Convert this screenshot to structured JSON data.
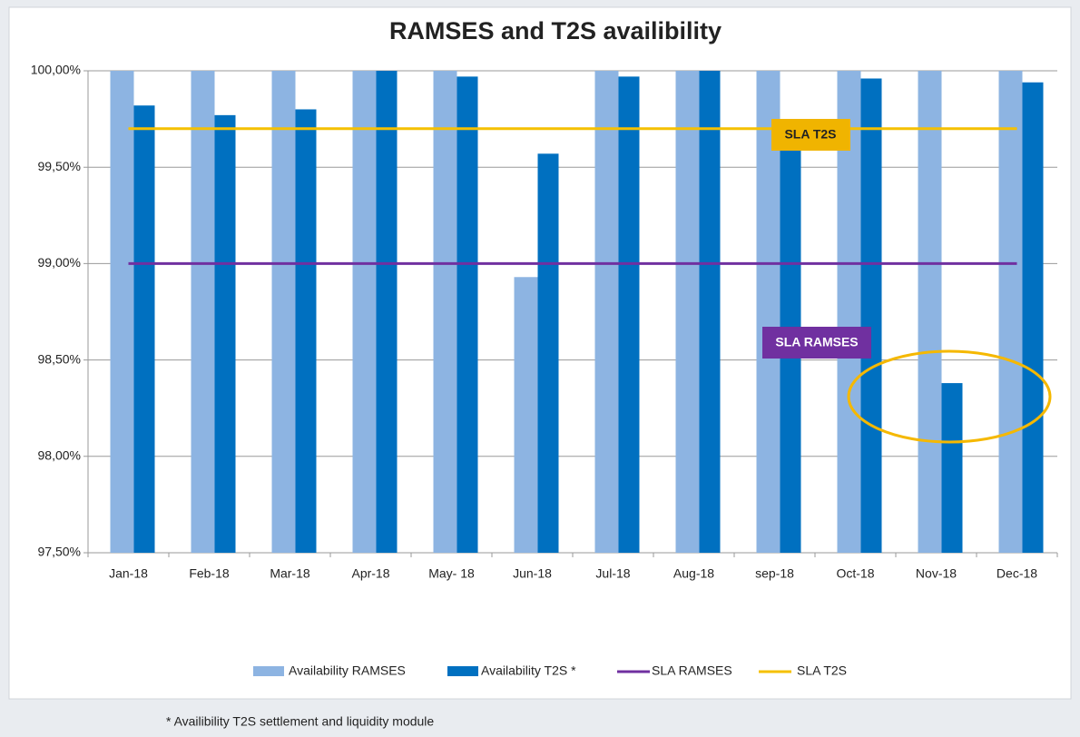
{
  "chart_data": {
    "type": "bar",
    "title": "RAMSES and T2S availibility",
    "categories": [
      "Jan-18",
      "Feb-18",
      "Mar-18",
      "Apr-18",
      "May- 18",
      "Jun-18",
      "Jul-18",
      "Aug-18",
      "sep-18",
      "Oct-18",
      "Nov-18",
      "Dec-18"
    ],
    "series": [
      {
        "name": "Availability RAMSES",
        "type": "bar",
        "color": "#8db4e2",
        "values": [
          100,
          100,
          100,
          100,
          100,
          98.93,
          100,
          100,
          100,
          100,
          100,
          100
        ]
      },
      {
        "name": "Availability T2S *",
        "type": "bar",
        "color": "#0070c0",
        "values": [
          99.82,
          99.77,
          99.8,
          100,
          99.97,
          99.57,
          99.97,
          100,
          99.6,
          99.96,
          98.38,
          99.94
        ]
      },
      {
        "name": "SLA RAMSES",
        "type": "line",
        "color": "#7030a0",
        "values": [
          99,
          99,
          99,
          99,
          99,
          99,
          99,
          99,
          99,
          99,
          99,
          99
        ]
      },
      {
        "name": "SLA T2S",
        "type": "line",
        "color": "#f5c000",
        "values": [
          99.7,
          99.7,
          99.7,
          99.7,
          99.7,
          99.7,
          99.7,
          99.7,
          99.7,
          99.7,
          99.7,
          99.7
        ]
      }
    ],
    "ylim": [
      97.5,
      100
    ],
    "yticks": [
      {
        "value": 97.5,
        "label": "97,50%"
      },
      {
        "value": 98,
        "label": "98,00%"
      },
      {
        "value": 98.5,
        "label": "98,50%"
      },
      {
        "value": 99,
        "label": "99,00%"
      },
      {
        "value": 99.5,
        "label": "99,50%"
      },
      {
        "value": 100,
        "label": "100,00%"
      }
    ],
    "grid": true,
    "annotations": [
      "SLA T2S",
      "SLA RAMSES"
    ],
    "footnote": "* Availibility T2S settlement and liquidity module"
  }
}
